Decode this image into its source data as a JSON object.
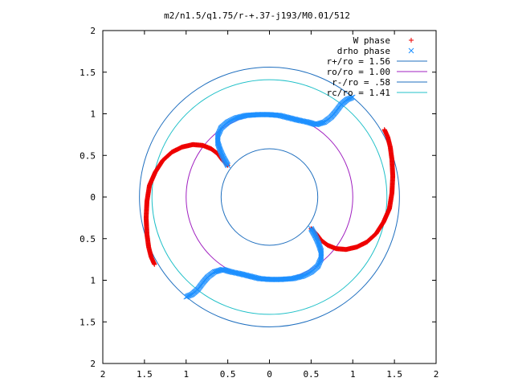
{
  "chart_data": {
    "type": "scatter",
    "title": "m2/n1.5/q1.75/r-+.37-j193/M0.01/512",
    "xlabel": "",
    "ylabel": "",
    "xlim": [
      -2,
      2
    ],
    "ylim": [
      -2,
      2
    ],
    "x_tick_values": [
      -2,
      -1.5,
      -1,
      -0.5,
      0,
      0.5,
      1,
      1.5,
      2
    ],
    "y_tick_values": [
      -2,
      -1.5,
      -1,
      -0.5,
      0,
      0.5,
      1,
      1.5,
      2
    ],
    "x_tick_labels": [
      "2",
      "1.5",
      "1",
      "0.5",
      "0",
      "0.5",
      "1",
      "1.5",
      "2"
    ],
    "y_tick_labels": [
      "2",
      "1.5",
      "1",
      "0.5",
      "0",
      "0.5",
      "1",
      "1.5",
      "2"
    ],
    "grid": false,
    "legend_position": "top-right",
    "circles": [
      {
        "label": "r+/ro = 1.56",
        "radius": 1.56,
        "color": "#1f6fbf"
      },
      {
        "label": "ro/ro = 1.00",
        "radius": 1.0,
        "color": "#a020c0"
      },
      {
        "label": "r-/ro = .58",
        "radius": 0.58,
        "color": "#1f6fbf"
      },
      {
        "label": "rc/ro = 1.41",
        "radius": 1.41,
        "color": "#20c0c8"
      }
    ],
    "series": [
      {
        "name": "W phase",
        "marker": "+",
        "color": "#ee0000",
        "arms": [
          [
            [
              -0.5,
              0.38
            ],
            [
              -0.56,
              0.44
            ],
            [
              -0.62,
              0.52
            ],
            [
              -0.7,
              0.58
            ],
            [
              -0.8,
              0.62
            ],
            [
              -0.92,
              0.63
            ],
            [
              -1.05,
              0.6
            ],
            [
              -1.17,
              0.54
            ],
            [
              -1.28,
              0.44
            ],
            [
              -1.37,
              0.3
            ],
            [
              -1.44,
              0.14
            ],
            [
              -1.47,
              -0.05
            ],
            [
              -1.48,
              -0.25
            ],
            [
              -1.47,
              -0.45
            ],
            [
              -1.45,
              -0.6
            ],
            [
              -1.42,
              -0.72
            ],
            [
              -1.38,
              -0.81
            ]
          ],
          [
            [
              0.5,
              -0.38
            ],
            [
              0.56,
              -0.44
            ],
            [
              0.62,
              -0.52
            ],
            [
              0.7,
              -0.58
            ],
            [
              0.8,
              -0.62
            ],
            [
              0.92,
              -0.63
            ],
            [
              1.05,
              -0.6
            ],
            [
              1.17,
              -0.54
            ],
            [
              1.28,
              -0.44
            ],
            [
              1.37,
              -0.3
            ],
            [
              1.44,
              -0.14
            ],
            [
              1.47,
              0.05
            ],
            [
              1.48,
              0.25
            ],
            [
              1.47,
              0.45
            ],
            [
              1.45,
              0.6
            ],
            [
              1.42,
              0.72
            ],
            [
              1.38,
              0.81
            ]
          ]
        ]
      },
      {
        "name": "drho phase",
        "marker": "x",
        "color": "#1e90ff",
        "arms": [
          [
            [
              -0.5,
              0.38
            ],
            [
              -0.55,
              0.47
            ],
            [
              -0.59,
              0.56
            ],
            [
              -0.62,
              0.65
            ],
            [
              -0.62,
              0.74
            ],
            [
              -0.58,
              0.83
            ],
            [
              -0.5,
              0.9
            ],
            [
              -0.4,
              0.95
            ],
            [
              -0.28,
              0.98
            ],
            [
              -0.14,
              0.99
            ],
            [
              0,
              0.99
            ],
            [
              0.12,
              0.98
            ],
            [
              0.24,
              0.95
            ],
            [
              0.36,
              0.92
            ],
            [
              0.46,
              0.9
            ],
            [
              0.56,
              0.87
            ],
            [
              0.66,
              0.9
            ],
            [
              0.74,
              0.96
            ],
            [
              0.8,
              1.03
            ],
            [
              0.86,
              1.11
            ],
            [
              0.93,
              1.17
            ],
            [
              1.0,
              1.2
            ]
          ],
          [
            [
              0.5,
              -0.38
            ],
            [
              0.55,
              -0.47
            ],
            [
              0.59,
              -0.56
            ],
            [
              0.62,
              -0.65
            ],
            [
              0.62,
              -0.74
            ],
            [
              0.58,
              -0.83
            ],
            [
              0.5,
              -0.9
            ],
            [
              0.4,
              -0.95
            ],
            [
              0.28,
              -0.98
            ],
            [
              0.14,
              -0.99
            ],
            [
              0,
              -0.99
            ],
            [
              -0.12,
              -0.98
            ],
            [
              -0.24,
              -0.95
            ],
            [
              -0.36,
              -0.92
            ],
            [
              -0.46,
              -0.9
            ],
            [
              -0.56,
              -0.87
            ],
            [
              -0.66,
              -0.9
            ],
            [
              -0.74,
              -0.96
            ],
            [
              -0.8,
              -1.03
            ],
            [
              -0.86,
              -1.11
            ],
            [
              -0.93,
              -1.17
            ],
            [
              -1.0,
              -1.2
            ]
          ]
        ]
      }
    ]
  }
}
